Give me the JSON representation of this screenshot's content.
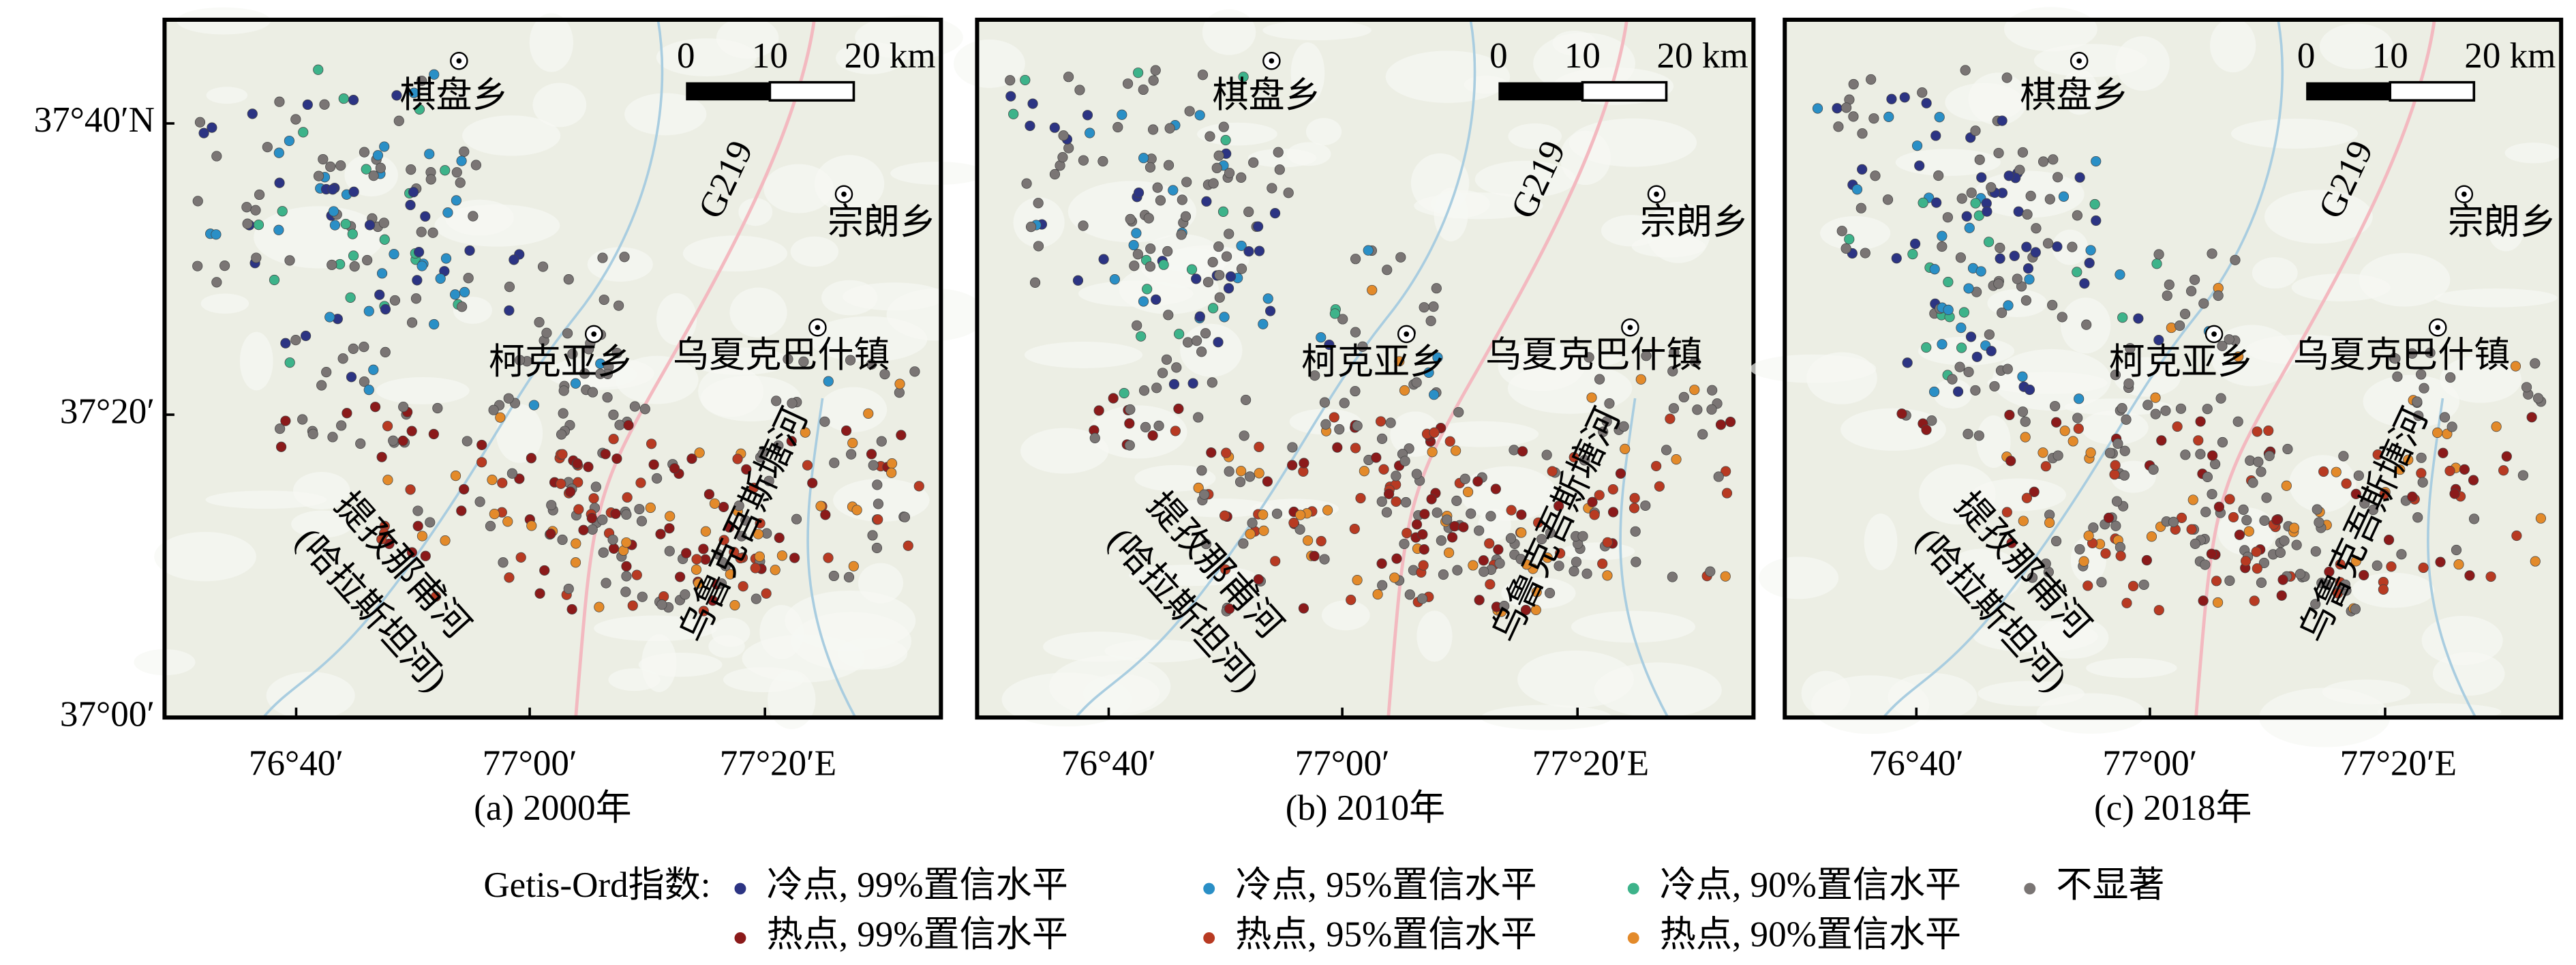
{
  "panels": [
    {
      "caption": "(a) 2000年"
    },
    {
      "caption": "(b) 2010年"
    },
    {
      "caption": "(c) 2018年"
    }
  ],
  "places": {
    "qipan": "棋盘乡",
    "zonglang": "宗朗乡",
    "road": "G219",
    "kekeya": "柯克亚乡",
    "wuxia": "乌夏克巴什镇",
    "river1": "提孜那甫河",
    "river1_alt": "(哈拉斯坦河)",
    "river2": "乌鲁克吾斯塘河"
  },
  "scale_bar": {
    "labels": [
      "0",
      "10",
      "20 km"
    ]
  },
  "axes": {
    "lat_labels": [
      "37°40′N",
      "37°20′",
      "37°00′"
    ],
    "lon_labels": [
      "76°40′",
      "77°00′",
      "77°20′E"
    ]
  },
  "legend": {
    "title": "Getis-Ord指数:",
    "items": [
      {
        "label": "冷点, 99%置信水平",
        "color": "#2c3483"
      },
      {
        "label": "冷点, 95%置信水平",
        "color": "#2a8fc6"
      },
      {
        "label": "冷点, 90%置信水平",
        "color": "#3db38a"
      },
      {
        "label": "不显著",
        "color": "#7a7574"
      },
      {
        "label": "热点, 99%置信水平",
        "color": "#8b1a1a"
      },
      {
        "label": "热点, 95%置信水平",
        "color": "#b83a22"
      },
      {
        "label": "热点, 90%置信水平",
        "color": "#e38a2a"
      }
    ]
  }
}
